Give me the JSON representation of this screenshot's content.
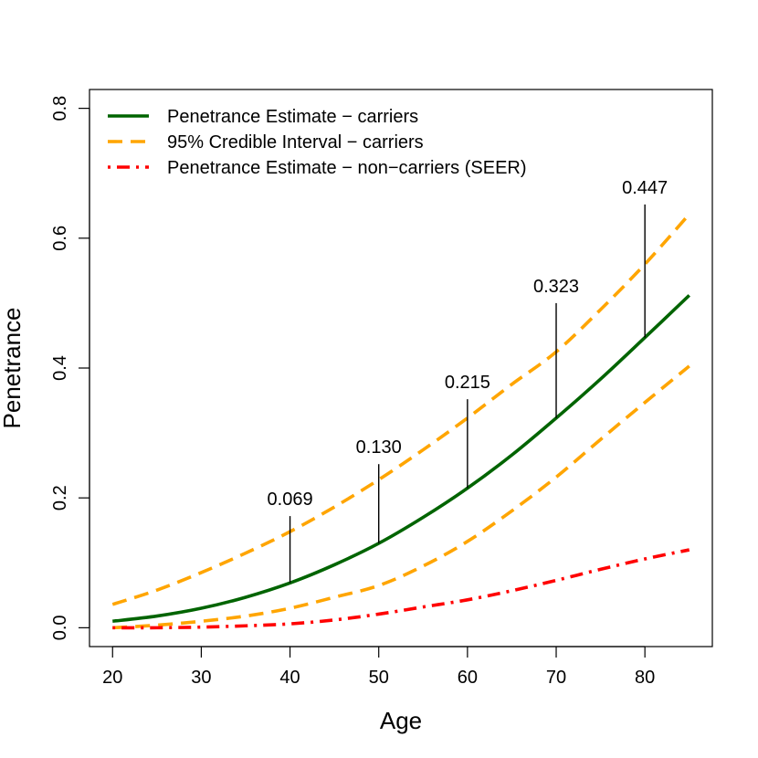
{
  "chart_data": {
    "type": "line",
    "xlabel": "Age",
    "ylabel": "Penetrance",
    "xlim": [
      17.4,
      87.6
    ],
    "ylim": [
      -0.029,
      0.829
    ],
    "xticks": [
      20,
      30,
      40,
      50,
      60,
      70,
      80
    ],
    "yticks": [
      0.0,
      0.2,
      0.4,
      0.6,
      0.8
    ],
    "ytick_labels": [
      "0.0",
      "0.2",
      "0.4",
      "0.6",
      "0.8"
    ],
    "grid": false,
    "legend_position": "top-left",
    "series": [
      {
        "name": "Penetrance Estimate − carriers",
        "color": "#006400",
        "style": "solid",
        "x": [
          20,
          25,
          30,
          35,
          40,
          45,
          50,
          55,
          60,
          65,
          70,
          75,
          80,
          85
        ],
        "y": [
          0.01,
          0.018,
          0.03,
          0.047,
          0.069,
          0.097,
          0.13,
          0.17,
          0.215,
          0.266,
          0.323,
          0.383,
          0.447,
          0.512
        ]
      },
      {
        "name": "95% Credible Interval − carriers",
        "color": "#FFA500",
        "style": "dashed",
        "x": [
          20,
          25,
          30,
          35,
          40,
          45,
          50,
          55,
          60,
          65,
          70,
          75,
          80,
          85
        ],
        "y": [
          0.036,
          0.058,
          0.085,
          0.115,
          0.148,
          0.186,
          0.228,
          0.274,
          0.323,
          0.375,
          0.425,
          0.49,
          0.56,
          0.637
        ]
      },
      {
        "name": "",
        "color": "#FFA500",
        "style": "dashed",
        "x": [
          20,
          25,
          30,
          35,
          40,
          45,
          50,
          55,
          60,
          65,
          70,
          75,
          80,
          85
        ],
        "y": [
          0.0,
          0.004,
          0.01,
          0.018,
          0.03,
          0.047,
          0.065,
          0.095,
          0.133,
          0.18,
          0.232,
          0.29,
          0.347,
          0.403
        ]
      },
      {
        "name": "Penetrance Estimate − non−carriers (SEER)",
        "color": "#FF0000",
        "style": "dotdash",
        "x": [
          20,
          25,
          30,
          35,
          40,
          45,
          50,
          55,
          60,
          65,
          70,
          75,
          80,
          85
        ],
        "y": [
          0.0,
          0.0,
          0.001,
          0.003,
          0.006,
          0.012,
          0.021,
          0.032,
          0.043,
          0.057,
          0.073,
          0.09,
          0.106,
          0.12
        ]
      }
    ],
    "annotations": [
      {
        "x": 40,
        "y_base": 0.069,
        "y_top": 0.172,
        "label": "0.069"
      },
      {
        "x": 50,
        "y_base": 0.13,
        "y_top": 0.252,
        "label": "0.130"
      },
      {
        "x": 60,
        "y_base": 0.215,
        "y_top": 0.352,
        "label": "0.215"
      },
      {
        "x": 70,
        "y_base": 0.323,
        "y_top": 0.5,
        "label": "0.323"
      },
      {
        "x": 80,
        "y_base": 0.447,
        "y_top": 0.652,
        "label": "0.447"
      }
    ]
  }
}
